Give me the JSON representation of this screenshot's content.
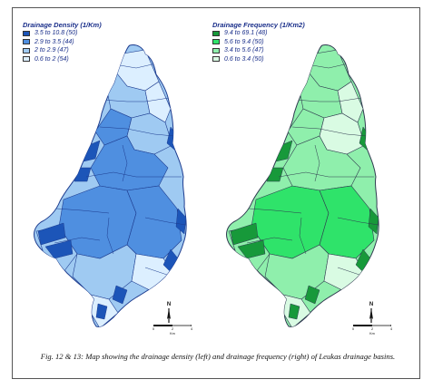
{
  "maps": [
    {
      "legend_title": "Drainage Density (1/Km)",
      "classes": [
        {
          "label": "3.5 to 10.8  (50)",
          "color": "#1c55b8"
        },
        {
          "label": "2.9 to  3.5  (44)",
          "color": "#4f8fe0"
        },
        {
          "label": "2     to  2.9  (47)",
          "color": "#9fcaf2"
        },
        {
          "label": "0.6 to  2     (54)",
          "color": "#dcefff"
        }
      ],
      "base_fill": "#9fcaf2",
      "line_color": "#1d3c8f"
    },
    {
      "legend_title": "Drainage Frequency (1/Km2)",
      "classes": [
        {
          "label": "9.4 to 69.1  (48)",
          "color": "#17993a"
        },
        {
          "label": "5.6 to  9.4  (50)",
          "color": "#2fe36a"
        },
        {
          "label": "3.4 to  5.6  (47)",
          "color": "#8fefac"
        },
        {
          "label": "0.6 to  3.4  (50)",
          "color": "#d9fbe3"
        }
      ],
      "base_fill": "#8fefac",
      "line_color": "#2f3a4f"
    }
  ],
  "north_label": "N",
  "scale_ticks": [
    "0",
    "2",
    "4"
  ],
  "scale_unit": "Km",
  "caption": "Fig. 12 & 13: Map showing the drainage density (left) and drainage frequency (right) of Leukas drainage basins."
}
